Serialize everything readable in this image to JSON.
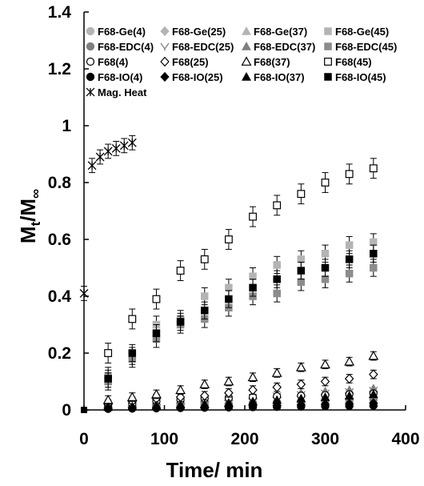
{
  "chart_data": {
    "type": "scatter",
    "xlabel": "Time/ min",
    "ylabel_main": "M",
    "ylabel_sub1": "t",
    "ylabel_mid": "/M",
    "ylabel_sub2": "∞",
    "xlim": [
      0,
      400
    ],
    "ylim": [
      0,
      1.4
    ],
    "x_ticks": [
      "0",
      "100",
      "200",
      "300",
      "400"
    ],
    "y_ticks": [
      "0",
      "0.2",
      "0.4",
      "0.6",
      "0.8",
      "1",
      "1.2",
      "1.4"
    ],
    "grid": false,
    "legend_position": "top",
    "series": [
      {
        "name": "F68-Ge(4)",
        "marker": "circle-filled",
        "color": "#b4b4b4",
        "x": [
          30,
          60,
          90,
          120,
          150,
          180,
          210,
          240,
          270,
          300,
          330,
          360
        ],
        "y": [
          0.008,
          0.01,
          0.012,
          0.015,
          0.018,
          0.02,
          0.022,
          0.025,
          0.028,
          0.03,
          0.032,
          0.035
        ]
      },
      {
        "name": "F68-Ge(25)",
        "marker": "diamond-filled",
        "color": "#b4b4b4",
        "x": [
          30,
          60,
          90,
          120,
          150,
          180,
          210,
          240,
          270,
          300,
          330,
          360
        ],
        "y": [
          0.012,
          0.015,
          0.02,
          0.025,
          0.03,
          0.035,
          0.04,
          0.045,
          0.05,
          0.055,
          0.06,
          0.065
        ]
      },
      {
        "name": "F68-Ge(37)",
        "marker": "triangle-filled",
        "color": "#b4b4b4",
        "x": [
          30,
          60,
          90,
          120,
          150,
          180,
          210,
          240,
          270,
          300,
          330,
          360
        ],
        "y": [
          0.015,
          0.02,
          0.028,
          0.035,
          0.04,
          0.045,
          0.05,
          0.055,
          0.06,
          0.065,
          0.07,
          0.075
        ]
      },
      {
        "name": "F68-Ge(45)",
        "marker": "square-filled",
        "color": "#b4b4b4",
        "x": [
          30,
          60,
          90,
          120,
          150,
          180,
          210,
          240,
          270,
          300,
          330,
          360
        ],
        "y": [
          0.12,
          0.19,
          0.3,
          0.32,
          0.4,
          0.43,
          0.47,
          0.51,
          0.53,
          0.55,
          0.58,
          0.59
        ]
      },
      {
        "name": "F68-EDC(4)",
        "marker": "circle-filled",
        "color": "#7f7f7f",
        "x": [
          30,
          60,
          90,
          120,
          150,
          180,
          210,
          240,
          270,
          300,
          330,
          360
        ],
        "y": [
          0.01,
          0.012,
          0.015,
          0.018,
          0.02,
          0.022,
          0.025,
          0.028,
          0.03,
          0.032,
          0.035,
          0.038
        ]
      },
      {
        "name": "F68-EDC(25)",
        "marker": "star-mark",
        "color": "#808080",
        "x": [
          30,
          60,
          90,
          120,
          150,
          180,
          210,
          240,
          270,
          300,
          330,
          360
        ],
        "y": [
          0.015,
          0.02,
          0.025,
          0.03,
          0.035,
          0.04,
          0.045,
          0.05,
          0.055,
          0.06,
          0.065,
          0.07
        ]
      },
      {
        "name": "F68-EDC(37)",
        "marker": "triangle-filled",
        "color": "#7f7f7f",
        "x": [
          30,
          60,
          90,
          120,
          150,
          180,
          210,
          240,
          270,
          300,
          330,
          360
        ],
        "y": [
          0.018,
          0.025,
          0.03,
          0.035,
          0.04,
          0.045,
          0.05,
          0.055,
          0.06,
          0.065,
          0.07,
          0.075
        ]
      },
      {
        "name": "F68-EDC(45)",
        "marker": "square-filled",
        "color": "#8c8c8c",
        "x": [
          30,
          60,
          90,
          120,
          150,
          180,
          210,
          240,
          270,
          300,
          330,
          360
        ],
        "y": [
          0.1,
          0.18,
          0.25,
          0.3,
          0.32,
          0.36,
          0.4,
          0.41,
          0.45,
          0.46,
          0.48,
          0.5
        ]
      },
      {
        "name": "F68(4)",
        "marker": "circle-open",
        "color": "#000000",
        "x": [
          30,
          60,
          90,
          120,
          150,
          180,
          210,
          240,
          270,
          300,
          330,
          360
        ],
        "y": [
          0.018,
          0.022,
          0.03,
          0.035,
          0.04,
          0.042,
          0.045,
          0.048,
          0.05,
          0.052,
          0.055,
          0.058
        ]
      },
      {
        "name": "F68(25)",
        "marker": "diamond-open",
        "color": "#000000",
        "x": [
          30,
          60,
          90,
          120,
          150,
          180,
          210,
          240,
          270,
          300,
          330,
          360
        ],
        "y": [
          0.02,
          0.03,
          0.04,
          0.045,
          0.05,
          0.06,
          0.07,
          0.08,
          0.09,
          0.1,
          0.11,
          0.125
        ]
      },
      {
        "name": "F68(37)",
        "marker": "triangle-open",
        "color": "#000000",
        "x": [
          30,
          60,
          90,
          120,
          150,
          180,
          210,
          240,
          270,
          300,
          330,
          360
        ],
        "y": [
          0.035,
          0.045,
          0.055,
          0.07,
          0.09,
          0.1,
          0.115,
          0.13,
          0.15,
          0.16,
          0.17,
          0.19
        ]
      },
      {
        "name": "F68(45)",
        "marker": "square-open",
        "color": "#000000",
        "x": [
          30,
          60,
          90,
          120,
          150,
          180,
          210,
          240,
          270,
          300,
          330,
          360
        ],
        "y": [
          0.2,
          0.32,
          0.39,
          0.49,
          0.53,
          0.6,
          0.68,
          0.72,
          0.76,
          0.8,
          0.83,
          0.85
        ]
      },
      {
        "name": "F68-IO(4)",
        "marker": "circle-filled",
        "color": "#000000",
        "x": [
          30,
          60,
          90,
          120,
          150,
          180,
          210,
          240,
          270,
          300,
          330,
          360
        ],
        "y": [
          0.004,
          0.005,
          0.006,
          0.007,
          0.008,
          0.009,
          0.01,
          0.011,
          0.012,
          0.013,
          0.014,
          0.015
        ]
      },
      {
        "name": "F68-IO(25)",
        "marker": "diamond-filled",
        "color": "#000000",
        "x": [
          30,
          60,
          90,
          120,
          150,
          180,
          210,
          240,
          270,
          300,
          330,
          360
        ],
        "y": [
          0.006,
          0.007,
          0.008,
          0.009,
          0.01,
          0.012,
          0.014,
          0.016,
          0.018,
          0.02,
          0.022,
          0.024
        ]
      },
      {
        "name": "F68-IO(37)",
        "marker": "triangle-filled",
        "color": "#000000",
        "x": [
          30,
          60,
          90,
          120,
          150,
          180,
          210,
          240,
          270,
          300,
          330,
          360
        ],
        "y": [
          0.01,
          0.012,
          0.015,
          0.018,
          0.02,
          0.025,
          0.03,
          0.035,
          0.04,
          0.045,
          0.05,
          0.055
        ]
      },
      {
        "name": "F68-IO(45)",
        "marker": "square-filled",
        "color": "#000000",
        "x": [
          30,
          60,
          90,
          120,
          150,
          180,
          210,
          240,
          270,
          300,
          330,
          360
        ],
        "y": [
          0.11,
          0.2,
          0.27,
          0.31,
          0.35,
          0.39,
          0.43,
          0.46,
          0.49,
          0.5,
          0.53,
          0.55
        ]
      },
      {
        "name": "Mag. Heat",
        "marker": "asterisk",
        "color": "#000000",
        "x": [
          0,
          10,
          20,
          30,
          40,
          50,
          60
        ],
        "y": [
          0.41,
          0.86,
          0.89,
          0.91,
          0.92,
          0.93,
          0.94
        ]
      }
    ],
    "origin_point": {
      "x": 0,
      "y": 0
    }
  }
}
